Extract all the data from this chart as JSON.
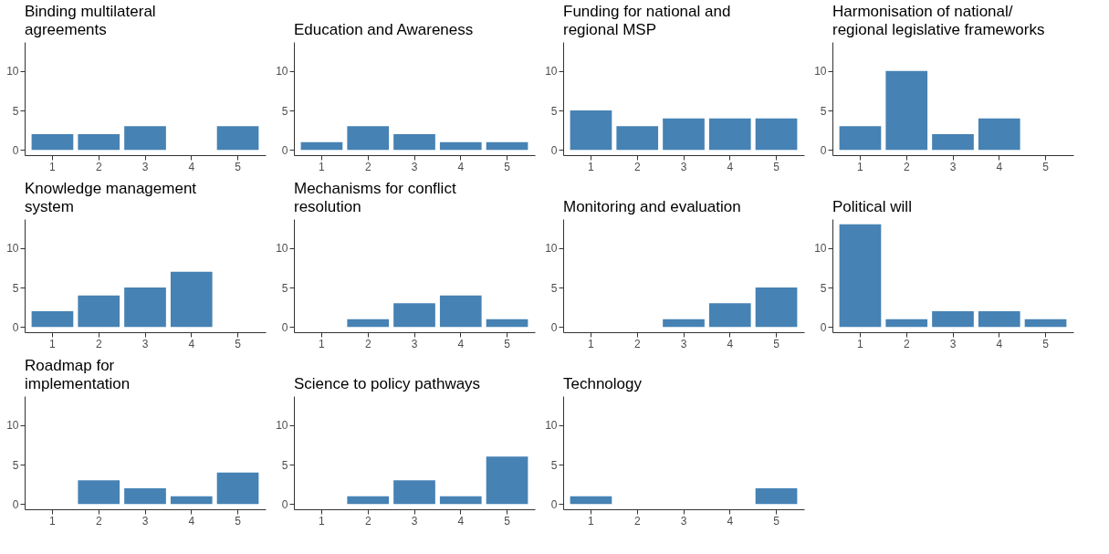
{
  "chart_data": [
    {
      "type": "bar",
      "title": "Binding multilateral\nagreements",
      "categories": [
        "1",
        "2",
        "3",
        "4",
        "5"
      ],
      "values": [
        2,
        2,
        3,
        0,
        3
      ],
      "color": "#4682b4",
      "ylim": [
        -0.65,
        13.65
      ],
      "yticks": [
        0,
        5,
        10
      ]
    },
    {
      "type": "bar",
      "title": "Education and Awareness",
      "categories": [
        "1",
        "2",
        "3",
        "4",
        "5"
      ],
      "values": [
        1,
        3,
        2,
        1,
        1
      ],
      "color": "#4682b4",
      "ylim": [
        -0.65,
        13.65
      ],
      "yticks": [
        0,
        5,
        10
      ]
    },
    {
      "type": "bar",
      "title": "Funding for national and\nregional MSP",
      "categories": [
        "1",
        "2",
        "3",
        "4",
        "5"
      ],
      "values": [
        5,
        3,
        4,
        4,
        4
      ],
      "color": "#4682b4",
      "ylim": [
        -0.65,
        13.65
      ],
      "yticks": [
        0,
        5,
        10
      ]
    },
    {
      "type": "bar",
      "title": "Harmonisation of national/\nregional legislative frameworks",
      "categories": [
        "1",
        "2",
        "3",
        "4",
        "5"
      ],
      "values": [
        3,
        10,
        2,
        4,
        0
      ],
      "color": "#4682b4",
      "ylim": [
        -0.65,
        13.65
      ],
      "yticks": [
        0,
        5,
        10
      ]
    },
    {
      "type": "bar",
      "title": "Knowledge management\nsystem",
      "categories": [
        "1",
        "2",
        "3",
        "4",
        "5"
      ],
      "values": [
        2,
        4,
        5,
        7,
        0
      ],
      "color": "#4682b4",
      "ylim": [
        -0.65,
        13.65
      ],
      "yticks": [
        0,
        5,
        10
      ]
    },
    {
      "type": "bar",
      "title": "Mechanisms for conflict\nresolution",
      "categories": [
        "1",
        "2",
        "3",
        "4",
        "5"
      ],
      "values": [
        0,
        1,
        3,
        4,
        1
      ],
      "color": "#4682b4",
      "ylim": [
        -0.65,
        13.65
      ],
      "yticks": [
        0,
        5,
        10
      ]
    },
    {
      "type": "bar",
      "title": "Monitoring and evaluation",
      "categories": [
        "1",
        "2",
        "3",
        "4",
        "5"
      ],
      "values": [
        0,
        0,
        1,
        3,
        5
      ],
      "color": "#4682b4",
      "ylim": [
        -0.65,
        13.65
      ],
      "yticks": [
        0,
        5,
        10
      ]
    },
    {
      "type": "bar",
      "title": "Political will",
      "categories": [
        "1",
        "2",
        "3",
        "4",
        "5"
      ],
      "values": [
        13,
        1,
        2,
        2,
        1
      ],
      "color": "#4682b4",
      "ylim": [
        -0.65,
        13.65
      ],
      "yticks": [
        0,
        5,
        10
      ]
    },
    {
      "type": "bar",
      "title": "Roadmap for\nimplementation",
      "categories": [
        "1",
        "2",
        "3",
        "4",
        "5"
      ],
      "values": [
        0,
        3,
        2,
        1,
        4
      ],
      "color": "#4682b4",
      "ylim": [
        -0.65,
        13.65
      ],
      "yticks": [
        0,
        5,
        10
      ]
    },
    {
      "type": "bar",
      "title": "Science to policy pathways",
      "categories": [
        "1",
        "2",
        "3",
        "4",
        "5"
      ],
      "values": [
        0,
        1,
        3,
        1,
        6
      ],
      "color": "#4682b4",
      "ylim": [
        -0.65,
        13.65
      ],
      "yticks": [
        0,
        5,
        10
      ]
    },
    {
      "type": "bar",
      "title": "Technology",
      "categories": [
        "1",
        "2",
        "3",
        "4",
        "5"
      ],
      "values": [
        1,
        0,
        0,
        0,
        2
      ],
      "color": "#4682b4",
      "ylim": [
        -0.65,
        13.65
      ],
      "yticks": [
        0,
        5,
        10
      ]
    }
  ]
}
